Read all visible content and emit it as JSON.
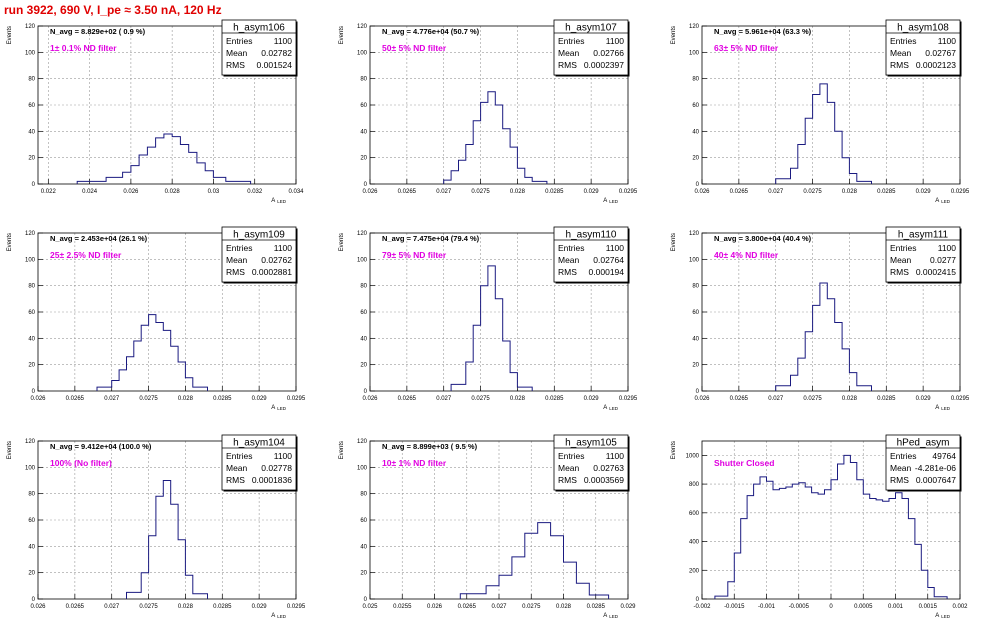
{
  "run_title": "run 3922,   690 V, I_pe ≈ 3.50 nA, 120 Hz",
  "colors": {
    "line": "#1a1a80",
    "grid": "#9a9a9a",
    "title": "#e00000",
    "filter": "#e000e0",
    "text": "#000000"
  },
  "stat_labels": {
    "entries": "Entries",
    "mean": "Mean",
    "rms": "RMS"
  },
  "ylabel": "Events",
  "xlabel_main": "A",
  "xlabel_sub": "LED",
  "chart_data": [
    {
      "type": "histogram",
      "name": "h_asym106",
      "navg": "N_avg = 8.829e+02 ( 0.9 %)",
      "filter": "1± 0.1% ND filter",
      "entries": "1100",
      "mean": "0.02782",
      "rms": "0.001524",
      "xlim": [
        0.0215,
        0.034
      ],
      "ylim": [
        0,
        120
      ],
      "xticks": [
        "0.022",
        "0.024",
        "0.026",
        "0.028",
        "0.03",
        "0.032",
        "0.034"
      ],
      "yticks": [
        "0",
        "20",
        "40",
        "60",
        "80",
        "100",
        "120"
      ],
      "bins": [
        [
          0.0234,
          0.0248,
          2
        ],
        [
          0.0248,
          0.0256,
          5
        ],
        [
          0.0256,
          0.026,
          9
        ],
        [
          0.026,
          0.0264,
          14
        ],
        [
          0.0264,
          0.0268,
          22
        ],
        [
          0.0268,
          0.0272,
          28
        ],
        [
          0.0272,
          0.0276,
          35
        ],
        [
          0.0276,
          0.028,
          38
        ],
        [
          0.028,
          0.0284,
          36
        ],
        [
          0.0284,
          0.0288,
          30
        ],
        [
          0.0288,
          0.0292,
          24
        ],
        [
          0.0292,
          0.0296,
          16
        ],
        [
          0.0296,
          0.03,
          10
        ],
        [
          0.03,
          0.0306,
          5
        ],
        [
          0.0306,
          0.0318,
          2
        ]
      ]
    },
    {
      "type": "histogram",
      "name": "h_asym107",
      "navg": "N_avg = 4.776e+04 (50.7 %)",
      "filter": "50± 5% ND filter",
      "entries": "1100",
      "mean": "0.02766",
      "rms": "0.0002397",
      "xlim": [
        0.026,
        0.0295
      ],
      "ylim": [
        0,
        120
      ],
      "xticks": [
        "0.026",
        "0.0265",
        "0.027",
        "0.0275",
        "0.028",
        "0.0285",
        "0.029",
        "0.0295"
      ],
      "yticks": [
        "0",
        "20",
        "40",
        "60",
        "80",
        "100",
        "120"
      ],
      "bins": [
        [
          0.027,
          0.0271,
          3
        ],
        [
          0.0271,
          0.0272,
          10
        ],
        [
          0.0272,
          0.0273,
          18
        ],
        [
          0.0273,
          0.0274,
          30
        ],
        [
          0.0274,
          0.0275,
          48
        ],
        [
          0.0275,
          0.0276,
          62
        ],
        [
          0.0276,
          0.0277,
          70
        ],
        [
          0.0277,
          0.0278,
          60
        ],
        [
          0.0278,
          0.0279,
          42
        ],
        [
          0.0279,
          0.028,
          28
        ],
        [
          0.028,
          0.0281,
          12
        ],
        [
          0.0281,
          0.0282,
          5
        ],
        [
          0.0282,
          0.0284,
          2
        ]
      ]
    },
    {
      "type": "histogram",
      "name": "h_asym108",
      "navg": "N_avg = 5.961e+04 (63.3 %)",
      "filter": "63± 5% ND filter",
      "entries": "1100",
      "mean": "0.02767",
      "rms": "0.0002123",
      "xlim": [
        0.026,
        0.0295
      ],
      "ylim": [
        0,
        120
      ],
      "xticks": [
        "0.026",
        "0.0265",
        "0.027",
        "0.0275",
        "0.028",
        "0.0285",
        "0.029",
        "0.0295"
      ],
      "yticks": [
        "0",
        "20",
        "40",
        "60",
        "80",
        "100",
        "120"
      ],
      "bins": [
        [
          0.027,
          0.0272,
          4
        ],
        [
          0.0272,
          0.0273,
          12
        ],
        [
          0.0273,
          0.0274,
          30
        ],
        [
          0.0274,
          0.0275,
          50
        ],
        [
          0.0275,
          0.0276,
          68
        ],
        [
          0.0276,
          0.0277,
          76
        ],
        [
          0.0277,
          0.0278,
          62
        ],
        [
          0.0278,
          0.0279,
          40
        ],
        [
          0.0279,
          0.028,
          20
        ],
        [
          0.028,
          0.0281,
          8
        ],
        [
          0.0281,
          0.0283,
          2
        ]
      ]
    },
    {
      "type": "histogram",
      "name": "h_asym109",
      "navg": "N_avg = 2.453e+04 (26.1 %)",
      "filter": "25± 2.5% ND filter",
      "entries": "1100",
      "mean": "0.02762",
      "rms": "0.0002881",
      "xlim": [
        0.026,
        0.0295
      ],
      "ylim": [
        0,
        120
      ],
      "xticks": [
        "0.026",
        "0.0265",
        "0.027",
        "0.0275",
        "0.028",
        "0.0285",
        "0.029",
        "0.0295"
      ],
      "yticks": [
        "0",
        "20",
        "40",
        "60",
        "80",
        "100",
        "120"
      ],
      "bins": [
        [
          0.0268,
          0.027,
          3
        ],
        [
          0.027,
          0.0271,
          8
        ],
        [
          0.0271,
          0.0272,
          16
        ],
        [
          0.0272,
          0.0273,
          26
        ],
        [
          0.0273,
          0.0274,
          38
        ],
        [
          0.0274,
          0.0275,
          50
        ],
        [
          0.0275,
          0.0276,
          58
        ],
        [
          0.0276,
          0.0277,
          52
        ],
        [
          0.0277,
          0.0278,
          46
        ],
        [
          0.0278,
          0.0279,
          34
        ],
        [
          0.0279,
          0.028,
          22
        ],
        [
          0.028,
          0.0281,
          10
        ],
        [
          0.0281,
          0.0283,
          3
        ]
      ]
    },
    {
      "type": "histogram",
      "name": "h_asym110",
      "navg": "N_avg = 7.475e+04 (79.4 %)",
      "filter": "79± 5% ND filter",
      "entries": "1100",
      "mean": "0.02764",
      "rms": "0.000194",
      "xlim": [
        0.026,
        0.0295
      ],
      "ylim": [
        0,
        120
      ],
      "xticks": [
        "0.026",
        "0.0265",
        "0.027",
        "0.0275",
        "0.028",
        "0.0285",
        "0.029",
        "0.0295"
      ],
      "yticks": [
        "0",
        "20",
        "40",
        "60",
        "80",
        "100",
        "120"
      ],
      "bins": [
        [
          0.0271,
          0.0273,
          5
        ],
        [
          0.0273,
          0.0274,
          22
        ],
        [
          0.0274,
          0.0275,
          50
        ],
        [
          0.0275,
          0.0276,
          80
        ],
        [
          0.0276,
          0.0277,
          95
        ],
        [
          0.0277,
          0.0278,
          70
        ],
        [
          0.0278,
          0.0279,
          38
        ],
        [
          0.0279,
          0.028,
          14
        ],
        [
          0.028,
          0.0282,
          3
        ]
      ]
    },
    {
      "type": "histogram",
      "name": "h_asym111",
      "navg": "N_avg = 3.800e+04 (40.4 %)",
      "filter": "40± 4% ND filter",
      "entries": "1100",
      "mean": "0.0277",
      "rms": "0.0002415",
      "xlim": [
        0.026,
        0.0295
      ],
      "ylim": [
        0,
        120
      ],
      "xticks": [
        "0.026",
        "0.0265",
        "0.027",
        "0.0275",
        "0.028",
        "0.0285",
        "0.029",
        "0.0295"
      ],
      "yticks": [
        "0",
        "20",
        "40",
        "60",
        "80",
        "100",
        "120"
      ],
      "bins": [
        [
          0.027,
          0.0272,
          4
        ],
        [
          0.0272,
          0.0273,
          12
        ],
        [
          0.0273,
          0.0274,
          25
        ],
        [
          0.0274,
          0.0275,
          45
        ],
        [
          0.0275,
          0.0276,
          65
        ],
        [
          0.0276,
          0.0277,
          82
        ],
        [
          0.0277,
          0.0278,
          70
        ],
        [
          0.0278,
          0.0279,
          52
        ],
        [
          0.0279,
          0.028,
          32
        ],
        [
          0.028,
          0.0281,
          14
        ],
        [
          0.0281,
          0.0283,
          4
        ]
      ]
    },
    {
      "type": "histogram",
      "name": "h_asym104",
      "navg": "N_avg = 9.412e+04 (100.0 %)",
      "filter": "100% (No filter)",
      "entries": "1100",
      "mean": "0.02778",
      "rms": "0.0001836",
      "xlim": [
        0.026,
        0.0295
      ],
      "ylim": [
        0,
        120
      ],
      "xticks": [
        "0.026",
        "0.0265",
        "0.027",
        "0.0275",
        "0.028",
        "0.0285",
        "0.029",
        "0.0295"
      ],
      "yticks": [
        "0",
        "20",
        "40",
        "60",
        "80",
        "100",
        "120"
      ],
      "bins": [
        [
          0.0272,
          0.0274,
          5
        ],
        [
          0.0274,
          0.0275,
          20
        ],
        [
          0.0275,
          0.0276,
          48
        ],
        [
          0.0276,
          0.0277,
          78
        ],
        [
          0.0277,
          0.0278,
          90
        ],
        [
          0.0278,
          0.0279,
          72
        ],
        [
          0.0279,
          0.028,
          45
        ],
        [
          0.028,
          0.0281,
          18
        ],
        [
          0.0281,
          0.0283,
          4
        ]
      ]
    },
    {
      "type": "histogram",
      "name": "h_asym105",
      "navg": "N_avg = 8.899e+03 ( 9.5 %)",
      "filter": "10± 1% ND filter",
      "entries": "1100",
      "mean": "0.02763",
      "rms": "0.0003569",
      "xlim": [
        0.025,
        0.029
      ],
      "ylim": [
        0,
        120
      ],
      "xticks": [
        "0.025",
        "0.0255",
        "0.026",
        "0.0265",
        "0.027",
        "0.0275",
        "0.028",
        "0.0285",
        "0.029"
      ],
      "yticks": [
        "0",
        "20",
        "40",
        "60",
        "80",
        "100",
        "120"
      ],
      "bins": [
        [
          0.0264,
          0.0268,
          4
        ],
        [
          0.0268,
          0.027,
          10
        ],
        [
          0.027,
          0.0272,
          18
        ],
        [
          0.0272,
          0.0274,
          32
        ],
        [
          0.0274,
          0.0276,
          50
        ],
        [
          0.0276,
          0.0278,
          58
        ],
        [
          0.0278,
          0.028,
          48
        ],
        [
          0.028,
          0.0282,
          28
        ],
        [
          0.0282,
          0.0284,
          12
        ],
        [
          0.0284,
          0.0287,
          3
        ]
      ]
    },
    {
      "type": "histogram",
      "name": "hPed_asym",
      "navg": "",
      "filter": "Shutter Closed",
      "entries": "49764",
      "mean": "-4.281e-06",
      "rms": "0.0007647",
      "xlim": [
        -0.002,
        0.002
      ],
      "ylim": [
        0,
        1100
      ],
      "xticks": [
        "-0.002",
        "-0.0015",
        "-0.001",
        "-0.0005",
        "0",
        "0.0005",
        "0.001",
        "0.0015",
        "0.002"
      ],
      "yticks": [
        "0",
        "200",
        "400",
        "600",
        "800",
        "1000"
      ],
      "bins": [
        [
          -0.0018,
          -0.0016,
          20
        ],
        [
          -0.0016,
          -0.0015,
          120
        ],
        [
          -0.0015,
          -0.0014,
          320
        ],
        [
          -0.0014,
          -0.0013,
          560
        ],
        [
          -0.0013,
          -0.0012,
          720
        ],
        [
          -0.0012,
          -0.0011,
          800
        ],
        [
          -0.0011,
          -0.001,
          850
        ],
        [
          -0.001,
          -0.0009,
          820
        ],
        [
          -0.0009,
          -0.0008,
          760
        ],
        [
          -0.0008,
          -0.0007,
          770
        ],
        [
          -0.0007,
          -0.0006,
          780
        ],
        [
          -0.0006,
          -0.0005,
          800
        ],
        [
          -0.0005,
          -0.0004,
          810
        ],
        [
          -0.0004,
          -0.0003,
          780
        ],
        [
          -0.0003,
          -0.0002,
          740
        ],
        [
          -0.0002,
          -0.0001,
          730
        ],
        [
          -0.0001,
          0,
          760
        ],
        [
          0,
          0.0001,
          830
        ],
        [
          0.0001,
          0.0002,
          940
        ],
        [
          0.0002,
          0.0003,
          1000
        ],
        [
          0.0003,
          0.0004,
          950
        ],
        [
          0.0004,
          0.0005,
          830
        ],
        [
          0.0005,
          0.0006,
          730
        ],
        [
          0.0006,
          0.0007,
          700
        ],
        [
          0.0007,
          0.0008,
          690
        ],
        [
          0.0008,
          0.0009,
          680
        ],
        [
          0.0009,
          0.001,
          700
        ],
        [
          0.001,
          0.0011,
          740
        ],
        [
          0.0011,
          0.0012,
          700
        ],
        [
          0.0012,
          0.0013,
          560
        ],
        [
          0.0013,
          0.0014,
          380
        ],
        [
          0.0014,
          0.0015,
          200
        ],
        [
          0.0015,
          0.0016,
          80
        ],
        [
          0.0016,
          0.0018,
          15
        ]
      ]
    }
  ]
}
